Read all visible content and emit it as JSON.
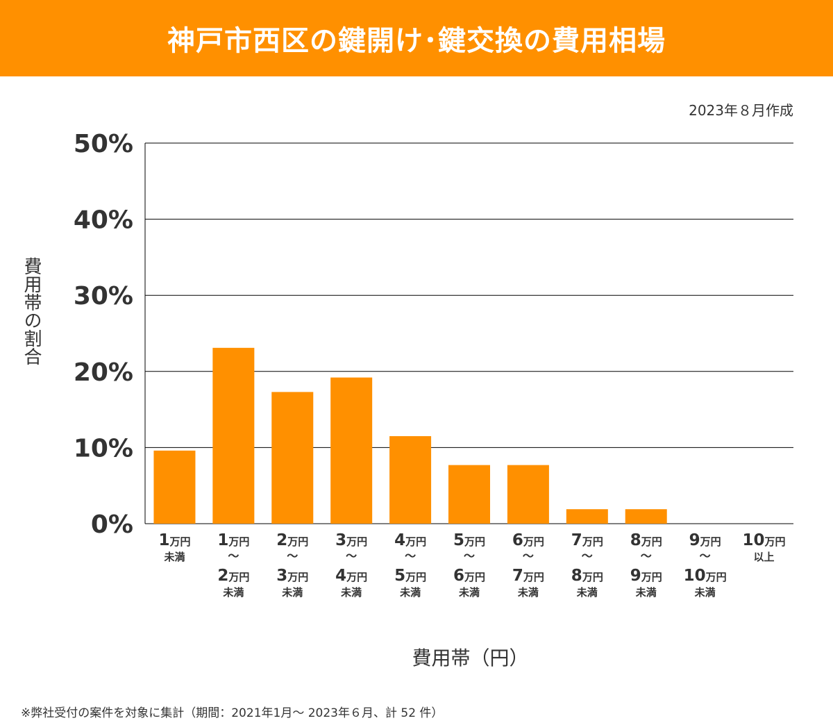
{
  "header": {
    "title": "神戸市西区の鍵開け･鍵交換の費用相場"
  },
  "created_label": "2023年８月作成",
  "footnote": "※弊社受付の案件を対象に集計（期間：2021年1月～ 2023年６月、計 52 件）",
  "colors": {
    "accent": "#ff9000",
    "bar": "#ff9000",
    "grid": "#000000",
    "text": "#333333"
  },
  "chart_data": {
    "type": "bar",
    "title": "神戸市西区の鍵開け･鍵交換の費用相場",
    "ylabel": "費用帯の割合",
    "xlabel": "費用帯（円）",
    "ylim": [
      0,
      50
    ],
    "y_ticks": [
      0,
      10,
      20,
      30,
      40,
      50
    ],
    "y_tick_labels": [
      "0%",
      "10%",
      "20%",
      "30%",
      "40%",
      "50%"
    ],
    "grid": true,
    "categories": [
      [
        [
          "1",
          "万円"
        ],
        [
          "未満"
        ]
      ],
      [
        [
          "1",
          "万円"
        ],
        [
          "～"
        ],
        [
          "2",
          "万円"
        ],
        [
          "未満"
        ]
      ],
      [
        [
          "2",
          "万円"
        ],
        [
          "～"
        ],
        [
          "3",
          "万円"
        ],
        [
          "未満"
        ]
      ],
      [
        [
          "3",
          "万円"
        ],
        [
          "～"
        ],
        [
          "4",
          "万円"
        ],
        [
          "未満"
        ]
      ],
      [
        [
          "4",
          "万円"
        ],
        [
          "～"
        ],
        [
          "5",
          "万円"
        ],
        [
          "未満"
        ]
      ],
      [
        [
          "5",
          "万円"
        ],
        [
          "～"
        ],
        [
          "6",
          "万円"
        ],
        [
          "未満"
        ]
      ],
      [
        [
          "6",
          "万円"
        ],
        [
          "～"
        ],
        [
          "7",
          "万円"
        ],
        [
          "未満"
        ]
      ],
      [
        [
          "7",
          "万円"
        ],
        [
          "～"
        ],
        [
          "8",
          "万円"
        ],
        [
          "未満"
        ]
      ],
      [
        [
          "8",
          "万円"
        ],
        [
          "～"
        ],
        [
          "9",
          "万円"
        ],
        [
          "未満"
        ]
      ],
      [
        [
          "9",
          "万円"
        ],
        [
          "～"
        ],
        [
          "10",
          "万円"
        ],
        [
          "未満"
        ]
      ],
      [
        [
          "10",
          "万円"
        ],
        [
          "以上"
        ]
      ]
    ],
    "values": [
      9.6,
      23.1,
      17.3,
      19.2,
      11.5,
      7.7,
      7.7,
      1.9,
      1.9,
      0,
      0
    ]
  }
}
